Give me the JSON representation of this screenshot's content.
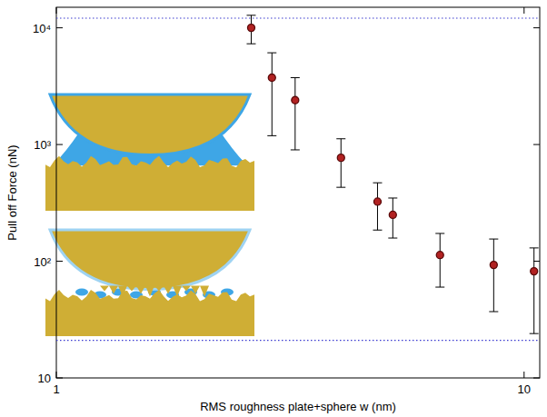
{
  "chart_data": {
    "type": "scatter",
    "x_label": "RMS roughness plate+sphere w (nm)",
    "y_label": "Pull off Force (nN)",
    "x": [
      2.61,
      2.89,
      3.24,
      4.06,
      4.86,
      5.24,
      6.61,
      8.61,
      10.5
    ],
    "values": [
      10000,
      3740,
      2400,
      770,
      324,
      250,
      113,
      93,
      82
    ],
    "y_low": [
      7300,
      1190,
      900,
      430,
      185,
      158,
      60,
      37,
      24
    ],
    "y_high": [
      12800,
      6110,
      3740,
      1120,
      470,
      348,
      173,
      155,
      130
    ],
    "hlines": [
      12100,
      21
    ],
    "color": "#b22222",
    "marker": "circle",
    "log": true,
    "xlim": [
      1,
      10.8
    ],
    "ylim": [
      10,
      15000
    ],
    "xticks": [
      1,
      10
    ],
    "yticks": [
      10,
      {
        "value": 100,
        "label": "10²"
      },
      {
        "value": 1000,
        "label": "10³"
      },
      {
        "value": 10000,
        "label": "10⁴"
      }
    ]
  }
}
